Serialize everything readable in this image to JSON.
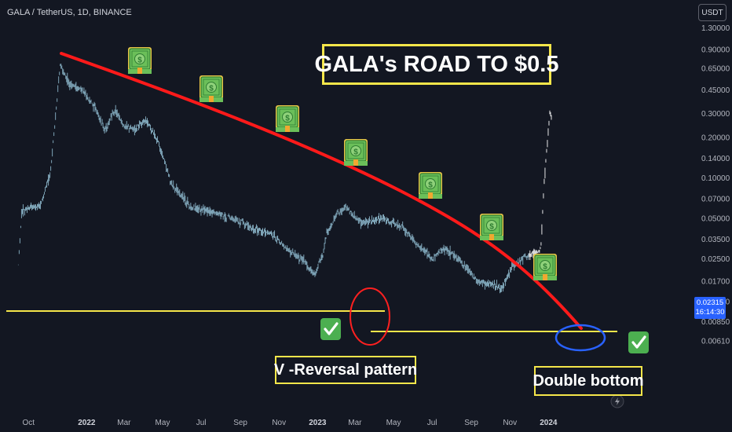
{
  "header": {
    "symbol": "GALA / TetherUS, 1D, BINANCE"
  },
  "currency_button": {
    "label": "USDT"
  },
  "price_tag": {
    "price": "0.02315",
    "countdown": "16:14:30"
  },
  "annotations": {
    "title": "GALA's ROAD TO  $0.5",
    "v_reversal": "V -Reversal pattern",
    "double_bottom": "Double bottom"
  },
  "colors": {
    "background": "#131722",
    "candle": "#8ab4c8",
    "breakout_candle": "#ffffff",
    "trend_curve": "#ff1a1a",
    "support_line": "#f5e64a",
    "v_reversal_circle": "#ff2020",
    "double_bottom_ellipse": "#2962ff",
    "price_tag": "#2962ff",
    "check_green": "#4caf50"
  },
  "icons": {
    "money": [
      "money-icon",
      "money-icon",
      "money-icon",
      "money-icon",
      "money-icon",
      "money-icon",
      "money-icon"
    ],
    "checks": [
      "check-icon",
      "check-icon"
    ],
    "flash": "lightning-icon"
  },
  "chart_data": {
    "type": "candlestick",
    "y_scale": "log",
    "y_ticks": [
      "1.30000",
      "0.90000",
      "0.65000",
      "0.45000",
      "0.30000",
      "0.20000",
      "0.14000",
      "0.10000",
      "0.07000",
      "0.05000",
      "0.03500",
      "0.02500",
      "0.01700",
      "0.01200",
      "0.00850",
      "0.00610"
    ],
    "x_ticks": [
      {
        "label": "Oct",
        "year": false
      },
      {
        "label": "2022",
        "year": true
      },
      {
        "label": "Mar",
        "year": false
      },
      {
        "label": "May",
        "year": false
      },
      {
        "label": "Jul",
        "year": false
      },
      {
        "label": "Sep",
        "year": false
      },
      {
        "label": "Nov",
        "year": false
      },
      {
        "label": "2023",
        "year": true
      },
      {
        "label": "Mar",
        "year": false
      },
      {
        "label": "May",
        "year": false
      },
      {
        "label": "Jul",
        "year": false
      },
      {
        "label": "Sep",
        "year": false
      },
      {
        "label": "Nov",
        "year": false
      },
      {
        "label": "2024",
        "year": true
      }
    ],
    "last_price": 0.02315,
    "price_path": [
      [
        "2021-09-15",
        0.022
      ],
      [
        "2021-09-20",
        0.055
      ],
      [
        "2021-10-01",
        0.06
      ],
      [
        "2021-10-20",
        0.062
      ],
      [
        "2021-11-05",
        0.11
      ],
      [
        "2021-11-20",
        0.7
      ],
      [
        "2021-12-05",
        0.5
      ],
      [
        "2021-12-25",
        0.45
      ],
      [
        "2022-01-15",
        0.33
      ],
      [
        "2022-01-30",
        0.22
      ],
      [
        "2022-02-15",
        0.32
      ],
      [
        "2022-03-01",
        0.24
      ],
      [
        "2022-03-20",
        0.23
      ],
      [
        "2022-04-05",
        0.27
      ],
      [
        "2022-04-25",
        0.18
      ],
      [
        "2022-05-15",
        0.09
      ],
      [
        "2022-06-15",
        0.06
      ],
      [
        "2022-07-15",
        0.056
      ],
      [
        "2022-08-20",
        0.05
      ],
      [
        "2022-09-20",
        0.042
      ],
      [
        "2022-10-20",
        0.038
      ],
      [
        "2022-11-15",
        0.029
      ],
      [
        "2022-12-10",
        0.024
      ],
      [
        "2022-12-28",
        0.019
      ],
      [
        "2023-01-10",
        0.028
      ],
      [
        "2023-01-15",
        0.038
      ],
      [
        "2023-02-01",
        0.055
      ],
      [
        "2023-02-15",
        0.06
      ],
      [
        "2023-03-10",
        0.046
      ],
      [
        "2023-04-15",
        0.05
      ],
      [
        "2023-05-15",
        0.043
      ],
      [
        "2023-06-10",
        0.031
      ],
      [
        "2023-07-01",
        0.025
      ],
      [
        "2023-07-20",
        0.03
      ],
      [
        "2023-08-15",
        0.024
      ],
      [
        "2023-09-10",
        0.017
      ],
      [
        "2023-10-05",
        0.016
      ],
      [
        "2023-10-20",
        0.015
      ],
      [
        "2023-11-05",
        0.022
      ],
      [
        "2023-11-25",
        0.026
      ],
      [
        "2023-12-10",
        0.027
      ],
      [
        "2023-12-20",
        0.03
      ],
      [
        "2023-12-25",
        0.09
      ],
      [
        "2023-12-30",
        0.18
      ],
      [
        "2024-01-03",
        0.3
      ],
      [
        "2024-01-06",
        0.28
      ]
    ]
  }
}
